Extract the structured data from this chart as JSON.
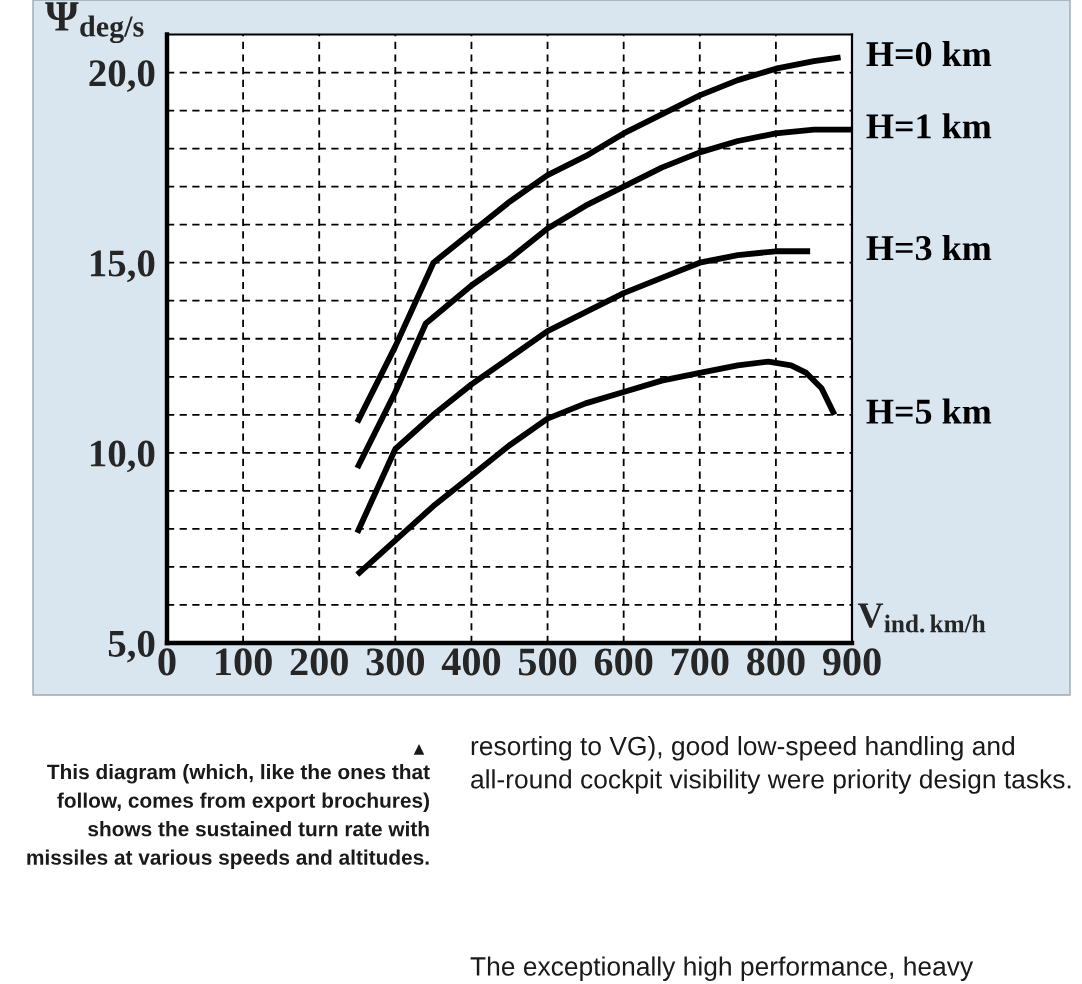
{
  "chart_data": {
    "type": "line",
    "xlabel": "V$_{ind.km/h}$",
    "ylabel": "Ψ$_{deg/s}$",
    "xlim": [
      0,
      900
    ],
    "ylim": [
      5,
      21
    ],
    "xticks": [
      0,
      100,
      200,
      300,
      400,
      500,
      600,
      700,
      800,
      900
    ],
    "yticks": [
      {
        "value": 5,
        "label": "5,0"
      },
      {
        "value": 6,
        "label": null
      },
      {
        "value": 7,
        "label": null
      },
      {
        "value": 8,
        "label": null
      },
      {
        "value": 9,
        "label": null
      },
      {
        "value": 10,
        "label": "10,0"
      },
      {
        "value": 11,
        "label": null
      },
      {
        "value": 12,
        "label": null
      },
      {
        "value": 13,
        "label": null
      },
      {
        "value": 14,
        "label": null
      },
      {
        "value": 15,
        "label": "15,0"
      },
      {
        "value": 16,
        "label": null
      },
      {
        "value": 17,
        "label": null
      },
      {
        "value": 18,
        "label": null
      },
      {
        "value": 19,
        "label": null
      },
      {
        "value": 20,
        "label": "20,0"
      }
    ],
    "grid": true,
    "line_style": "solid",
    "series": [
      {
        "name": "H=0 km",
        "color": "#000000",
        "x": [
          250,
          300,
          350,
          400,
          450,
          500,
          550,
          600,
          650,
          700,
          750,
          800,
          850,
          885
        ],
        "values": [
          10.8,
          12.8,
          15.0,
          15.8,
          16.6,
          17.3,
          17.8,
          18.4,
          18.9,
          19.4,
          19.8,
          20.1,
          20.3,
          20.4
        ]
      },
      {
        "name": "H=1 km",
        "color": "#000000",
        "x": [
          250,
          300,
          340,
          400,
          450,
          500,
          550,
          600,
          650,
          700,
          750,
          800,
          850,
          900
        ],
        "values": [
          9.6,
          11.6,
          13.4,
          14.4,
          15.1,
          15.9,
          16.5,
          17.0,
          17.5,
          17.9,
          18.2,
          18.4,
          18.5,
          18.5
        ]
      },
      {
        "name": "H=3 km",
        "color": "#000000",
        "x": [
          250,
          300,
          350,
          400,
          450,
          500,
          550,
          600,
          650,
          700,
          750,
          800,
          845
        ],
        "values": [
          7.9,
          10.1,
          11.0,
          11.8,
          12.5,
          13.2,
          13.7,
          14.2,
          14.6,
          15.0,
          15.2,
          15.3,
          15.3
        ]
      },
      {
        "name": "H=5 km",
        "color": "#000000",
        "x": [
          250,
          300,
          350,
          400,
          450,
          500,
          550,
          600,
          650,
          700,
          750,
          790,
          820,
          840,
          860,
          877
        ],
        "values": [
          6.8,
          7.7,
          8.6,
          9.4,
          10.2,
          10.9,
          11.3,
          11.6,
          11.9,
          12.1,
          12.3,
          12.4,
          12.3,
          12.1,
          11.7,
          11.0
        ]
      }
    ],
    "annotations": [
      "▲",
      "This diagram (which, like the ones that follow, comes from export brochures) shows the sustained turn rate with missiles at various speeds and altitudes.",
      "resorting to VG), good low-speed handling and all-round cockpit visibility were priority design tasks.",
      "The exceptionally high performance, heavy"
    ]
  }
}
